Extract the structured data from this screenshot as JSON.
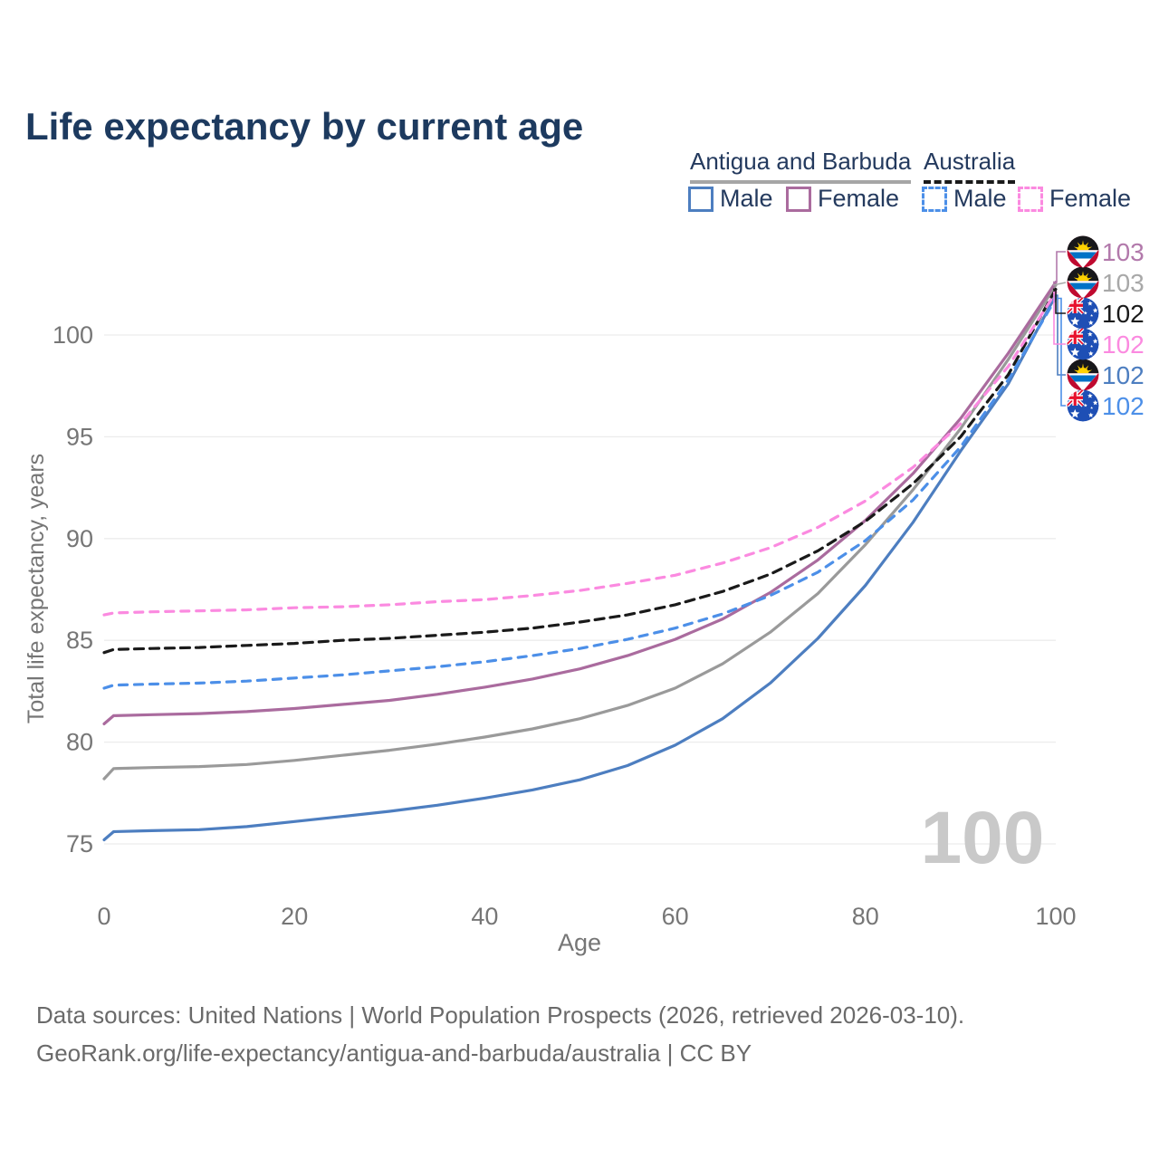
{
  "title": "Life expectancy by current age",
  "legend": {
    "groups": [
      {
        "name": "Antigua and Barbuda",
        "line_style": "solid",
        "underline_color": "#a6a6a6",
        "items": [
          {
            "label": "Male",
            "color": "#4d7ec0",
            "dashed": false
          },
          {
            "label": "Female",
            "color": "#aa6b9e",
            "dashed": false
          }
        ]
      },
      {
        "name": "Australia",
        "line_style": "dashed",
        "underline_color": "#1a1a1a",
        "items": [
          {
            "label": "Male",
            "color": "#4c8fe8",
            "dashed": true
          },
          {
            "label": "Female",
            "color": "#fb8ae0",
            "dashed": true
          }
        ]
      }
    ]
  },
  "chart_data": {
    "type": "line",
    "title": "Life expectancy by current age",
    "xlabel": "Age",
    "ylabel": "Total life expectancy, years",
    "xlim": [
      0,
      100
    ],
    "ylim": [
      73,
      104
    ],
    "xticks": [
      0,
      20,
      40,
      60,
      80,
      100
    ],
    "yticks": [
      75,
      80,
      85,
      90,
      95,
      100
    ],
    "grid": "horizontal",
    "gridline_color": "#ececec",
    "axis_text_color": "#767676",
    "x": [
      0,
      1,
      5,
      10,
      15,
      20,
      25,
      30,
      35,
      40,
      45,
      50,
      55,
      60,
      65,
      70,
      75,
      80,
      85,
      90,
      95,
      100
    ],
    "series": [
      {
        "name": "Antigua and Barbuda Male",
        "country": "Antigua and Barbuda",
        "sex": "Male",
        "color": "#4d7ec0",
        "dashed": false,
        "values": [
          75.2,
          75.6,
          75.65,
          75.7,
          75.85,
          76.1,
          76.35,
          76.6,
          76.9,
          77.25,
          77.65,
          78.15,
          78.85,
          79.85,
          81.15,
          82.9,
          85.1,
          87.7,
          90.8,
          94.3,
          97.6,
          101.95
        ],
        "end_label": "102",
        "end_label_color": "#4d7ec0",
        "flag": "antigua-and-barbuda",
        "label_row": 4
      },
      {
        "name": "Antigua and Barbuda Total",
        "country": "Antigua and Barbuda",
        "sex": "Both",
        "color": "#9a9a9a",
        "dashed": false,
        "values": [
          78.2,
          78.7,
          78.75,
          78.8,
          78.9,
          79.1,
          79.35,
          79.6,
          79.9,
          80.25,
          80.65,
          81.15,
          81.8,
          82.65,
          83.85,
          85.4,
          87.3,
          89.7,
          92.4,
          95.4,
          98.8,
          102.45
        ],
        "end_label": "103",
        "end_label_color": "#a8a8a8",
        "flag": "antigua-and-barbuda",
        "label_row": 1
      },
      {
        "name": "Antigua and Barbuda Female",
        "country": "Antigua and Barbuda",
        "sex": "Female",
        "color": "#aa6b9e",
        "dashed": false,
        "values": [
          80.9,
          81.3,
          81.35,
          81.4,
          81.5,
          81.65,
          81.85,
          82.05,
          82.35,
          82.7,
          83.1,
          83.6,
          84.25,
          85.05,
          86.05,
          87.35,
          88.95,
          90.9,
          93.2,
          95.9,
          99.1,
          102.6
        ],
        "end_label": "103",
        "end_label_color": "#b279ab",
        "flag": "antigua-and-barbuda",
        "label_row": 0
      },
      {
        "name": "Australia Male",
        "country": "Australia",
        "sex": "Male",
        "color": "#4c8fe8",
        "dashed": true,
        "values": [
          82.65,
          82.8,
          82.85,
          82.9,
          83.0,
          83.15,
          83.3,
          83.5,
          83.7,
          83.95,
          84.25,
          84.6,
          85.05,
          85.6,
          86.3,
          87.2,
          88.35,
          89.9,
          91.9,
          94.5,
          97.8,
          101.8
        ],
        "end_label": "102",
        "end_label_color": "#4c8fe8",
        "flag": "australia",
        "label_row": 5
      },
      {
        "name": "Australia Total",
        "country": "Australia",
        "sex": "Both",
        "color": "#1a1a1a",
        "dashed": true,
        "values": [
          84.4,
          84.55,
          84.6,
          84.65,
          84.75,
          84.85,
          85.0,
          85.1,
          85.25,
          85.4,
          85.6,
          85.9,
          86.25,
          86.75,
          87.4,
          88.25,
          89.4,
          90.85,
          92.7,
          95.0,
          98.05,
          102.25
        ],
        "end_label": "102",
        "end_label_color": "#1a1a1a",
        "flag": "australia",
        "label_row": 2
      },
      {
        "name": "Australia Female",
        "country": "Australia",
        "sex": "Female",
        "color": "#fb8ae0",
        "dashed": true,
        "values": [
          86.25,
          86.35,
          86.4,
          86.45,
          86.5,
          86.6,
          86.65,
          86.75,
          86.9,
          87.0,
          87.2,
          87.45,
          87.8,
          88.2,
          88.8,
          89.55,
          90.55,
          91.85,
          93.5,
          95.65,
          98.45,
          102.1
        ],
        "end_label": "102",
        "end_label_color": "#fb8ae0",
        "flag": "australia",
        "label_row": 3
      }
    ],
    "legend_position": "top-right",
    "watermark": "100"
  },
  "footer": {
    "line1": "Data sources: United Nations | World Population Prospects (2026, retrieved 2026-03-10).",
    "line2": "GeoRank.org/life-expectancy/antigua-and-barbuda/australia | CC BY"
  }
}
